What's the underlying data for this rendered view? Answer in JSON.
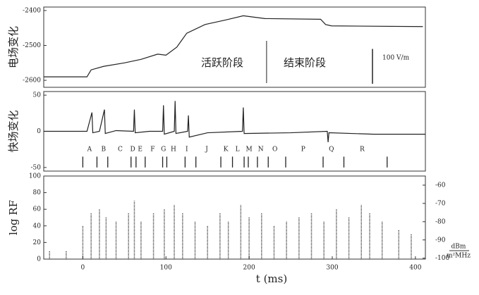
{
  "chart_data": [
    {
      "type": "line",
      "ylabel": "电场变化",
      "xlim": [
        -47,
        412
      ],
      "ylim": [
        -2620,
        -2390
      ],
      "yticks": [
        -2600,
        -2500,
        -2400
      ],
      "x": [
        -47,
        5,
        10,
        25,
        50,
        70,
        90,
        100,
        113,
        125,
        147,
        172,
        193,
        219,
        286,
        292,
        299,
        409
      ],
      "values": [
        -2590,
        -2590,
        -2570,
        -2560,
        -2550,
        -2540,
        -2525,
        -2528,
        -2505,
        -2465,
        -2440,
        -2427,
        -2415,
        -2423,
        -2425,
        -2440,
        -2444,
        -2446
      ],
      "color": "#222",
      "annotations": [
        "活跃阶段",
        "结束阶段",
        "100 V/m"
      ],
      "divider_x": 221,
      "scale_bar": [
        -2510,
        -2610
      ]
    },
    {
      "type": "line",
      "ylabel": "快场变化",
      "xlim": [
        -47,
        412
      ],
      "ylim": [
        -55,
        55
      ],
      "yticks": [
        -50,
        0,
        50
      ],
      "x": [
        -47,
        5,
        11,
        12,
        20,
        26,
        27,
        40,
        61,
        62,
        63,
        80,
        96,
        97,
        98,
        110,
        111,
        112,
        126,
        127,
        128,
        150,
        192,
        193,
        194,
        250,
        294,
        295,
        296,
        350,
        412
      ],
      "values": [
        0,
        0,
        26,
        -2,
        0,
        30,
        -3,
        1,
        0,
        30,
        -2,
        0,
        0,
        36,
        -4,
        0,
        42,
        -3,
        0,
        22,
        -8,
        -2,
        0,
        33,
        -3,
        -2,
        0,
        -15,
        -2,
        -4,
        -4
      ],
      "color": "#222",
      "events": [
        "A",
        "B",
        "C",
        "D",
        "E",
        "F",
        "G",
        "H",
        "I",
        "J",
        "K",
        "L",
        "M",
        "N",
        "O",
        "P",
        "Q",
        "R"
      ],
      "event_x": [
        8,
        25,
        45,
        60,
        69,
        84,
        97,
        109,
        125,
        149,
        172,
        186,
        200,
        214,
        231,
        265,
        299,
        336
      ],
      "event_ticks": [
        0,
        17,
        30,
        58,
        64,
        75,
        96,
        101,
        123,
        136,
        166,
        180,
        194,
        199,
        210,
        223,
        244,
        289,
        314,
        366
      ]
    },
    {
      "type": "spike",
      "ylabel": "log RF",
      "xlabel": "t (ms)",
      "xlim": [
        -47,
        412
      ],
      "xticks": [
        0,
        100,
        200,
        300,
        400
      ],
      "ylim": [
        0,
        100
      ],
      "yticks": [
        0,
        20,
        40,
        60,
        80,
        100
      ],
      "y2lim": [
        -100.5,
        -55
      ],
      "y2ticks": [
        -100,
        -90,
        -80,
        -70,
        -60
      ],
      "y2label": [
        "dBm",
        "m²MHz"
      ],
      "x": [
        -40,
        -20,
        0,
        10,
        20,
        28,
        40,
        55,
        62,
        70,
        85,
        98,
        110,
        120,
        135,
        150,
        165,
        175,
        190,
        200,
        215,
        230,
        245,
        260,
        275,
        290,
        305,
        320,
        335,
        345,
        360,
        380,
        395
      ],
      "values": [
        10,
        10,
        40,
        55,
        60,
        50,
        45,
        55,
        70,
        45,
        55,
        60,
        65,
        55,
        45,
        40,
        55,
        45,
        65,
        50,
        55,
        40,
        45,
        50,
        55,
        45,
        60,
        50,
        65,
        55,
        45,
        35,
        30
      ],
      "color": "#333"
    }
  ]
}
